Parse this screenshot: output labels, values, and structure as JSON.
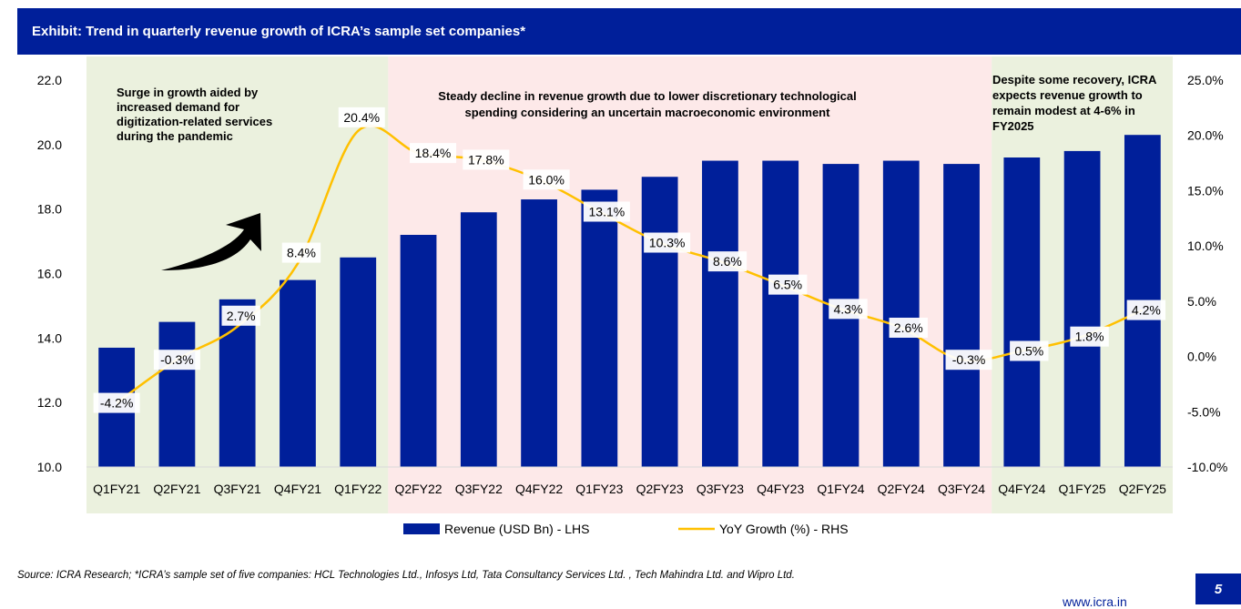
{
  "header": {
    "title": "Exhibit: Trend in quarterly revenue growth of ICRA’s sample set companies*"
  },
  "footer": {
    "source": "Source: ICRA Research; *ICRA’s sample set of five companies: HCL Technologies Ltd., Infosys Ltd, Tata Consultancy Services Ltd. , Tech Mahindra Ltd. and Wipro Ltd.",
    "page_number": "5",
    "website": "www.icra.in"
  },
  "chart_data": {
    "type": "bar",
    "categories": [
      "Q1FY21",
      "Q2FY21",
      "Q3FY21",
      "Q4FY21",
      "Q1FY22",
      "Q2FY22",
      "Q3FY22",
      "Q4FY22",
      "Q1FY23",
      "Q2FY23",
      "Q3FY23",
      "Q4FY23",
      "Q1FY24",
      "Q2FY24",
      "Q3FY24",
      "Q4FY24",
      "Q1FY25",
      "Q2FY25"
    ],
    "series": [
      {
        "name": "Revenue (USD Bn) - LHS",
        "type": "bar",
        "axis": "left",
        "color": "#001f9a",
        "values": [
          13.7,
          14.5,
          15.2,
          15.8,
          16.5,
          17.2,
          17.9,
          18.3,
          18.6,
          19.0,
          19.5,
          19.5,
          19.4,
          19.5,
          19.4,
          19.6,
          19.8,
          20.3
        ]
      },
      {
        "name": "YoY Growth (%) - RHS",
        "type": "line",
        "axis": "right",
        "color": "#ffc000",
        "values": [
          -4.2,
          -0.3,
          2.7,
          8.4,
          20.4,
          18.4,
          17.8,
          16.0,
          13.1,
          10.3,
          8.6,
          6.5,
          4.3,
          2.6,
          -0.3,
          0.5,
          1.8,
          4.2
        ],
        "data_labels": [
          "-4.2%",
          "-0.3%",
          "2.7%",
          "8.4%",
          "20.4%",
          "18.4%",
          "17.8%",
          "16.0%",
          "13.1%",
          "10.3%",
          "8.6%",
          "6.5%",
          "4.3%",
          "2.6%",
          "-0.3%",
          "0.5%",
          "1.8%",
          "4.2%"
        ]
      }
    ],
    "ylim_left": [
      10,
      22
    ],
    "yticks_left": [
      "22.0",
      "20.0",
      "18.0",
      "16.0",
      "14.0",
      "12.0",
      "10.0"
    ],
    "ylim_right": [
      -10,
      25
    ],
    "yticks_right": [
      "25.0%",
      "20.0%",
      "15.0%",
      "10.0%",
      "5.0%",
      "0.0%",
      "-5.0%",
      "-10.0%"
    ],
    "legend_position": "bottom",
    "grid": false,
    "regions": [
      {
        "from": "Q1FY21",
        "to": "Q1FY22",
        "color": "#ebf1de",
        "text": [
          "Surge in growth aided by",
          "increased demand for",
          "digitization-related services",
          "during the pandemic"
        ]
      },
      {
        "from": "Q2FY22",
        "to": "Q3FY24",
        "color": "#fde9e9",
        "text": [
          "Steady decline in revenue growth due to lower discretionary technological",
          "spending considering an uncertain macroeconomic environment"
        ]
      },
      {
        "from": "Q4FY24",
        "to": "Q2FY25",
        "color": "#ebf1de",
        "text": [
          "Despite some recovery, ICRA",
          "expects revenue growth to",
          "remain modest at 4-6% in",
          "FY2025"
        ]
      }
    ]
  }
}
